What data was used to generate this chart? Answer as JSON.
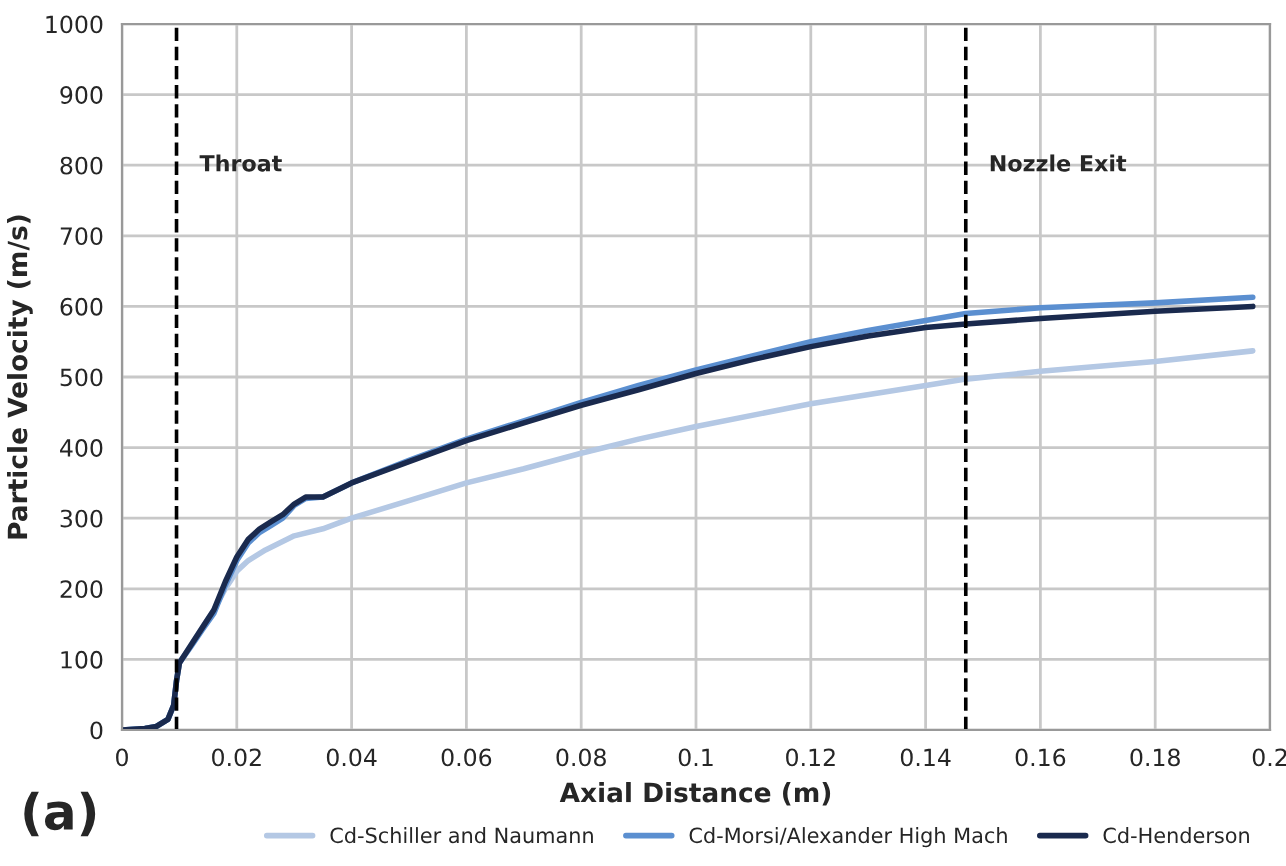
{
  "chart_data": {
    "type": "line",
    "xlabel": "Axial Distance (m)",
    "ylabel": "Particle Velocity (m/s)",
    "xlim": [
      0,
      0.2
    ],
    "xticks": [
      0,
      0.02,
      0.04,
      0.06,
      0.08,
      0.1,
      0.12,
      0.14,
      0.16,
      0.18,
      0.2
    ],
    "ylim": [
      0,
      1000
    ],
    "yticks": [
      0,
      100,
      200,
      300,
      400,
      500,
      600,
      700,
      800,
      900,
      1000
    ],
    "grid": true,
    "legend": "bottom",
    "marker": "none",
    "line_style": "solid",
    "ref_lines": [
      {
        "axis": "x",
        "value": 0.0095,
        "label": "Throat",
        "color": "#000000",
        "line_style": "dashed"
      },
      {
        "axis": "x",
        "value": 0.147,
        "label": "Nozzle Exit",
        "color": "#000000",
        "line_style": "dashed"
      }
    ],
    "annotations": [
      "(a)"
    ],
    "series": [
      {
        "name": "Cd-Schiller and Naumann",
        "color": "#b4c8e4",
        "x": [
          0,
          0.004,
          0.006,
          0.008,
          0.009,
          0.0095,
          0.01,
          0.012,
          0.014,
          0.016,
          0.018,
          0.02,
          0.022,
          0.025,
          0.03,
          0.035,
          0.04,
          0.05,
          0.06,
          0.07,
          0.08,
          0.09,
          0.1,
          0.12,
          0.14,
          0.147,
          0.16,
          0.18,
          0.197
        ],
        "values": [
          0,
          2,
          5,
          15,
          35,
          70,
          95,
          120,
          145,
          170,
          200,
          225,
          240,
          255,
          275,
          285,
          300,
          325,
          350,
          370,
          392,
          412,
          430,
          462,
          488,
          497,
          508,
          522,
          537
        ]
      },
      {
        "name": "Cd-Morsi/Alexander High Mach",
        "color": "#5b8fd0",
        "x": [
          0,
          0.004,
          0.006,
          0.008,
          0.009,
          0.0095,
          0.01,
          0.012,
          0.014,
          0.016,
          0.018,
          0.02,
          0.022,
          0.024,
          0.026,
          0.028,
          0.03,
          0.032,
          0.035,
          0.04,
          0.05,
          0.06,
          0.07,
          0.08,
          0.09,
          0.1,
          0.11,
          0.12,
          0.13,
          0.14,
          0.147,
          0.16,
          0.18,
          0.197
        ],
        "values": [
          0,
          2,
          5,
          15,
          35,
          70,
          95,
          118,
          142,
          165,
          205,
          240,
          265,
          280,
          290,
          300,
          318,
          328,
          330,
          350,
          382,
          412,
          438,
          464,
          488,
          510,
          530,
          550,
          566,
          580,
          590,
          598,
          605,
          613
        ]
      },
      {
        "name": "Cd-Henderson",
        "color": "#1a2a4e",
        "x": [
          0,
          0.004,
          0.006,
          0.008,
          0.009,
          0.0095,
          0.01,
          0.012,
          0.014,
          0.016,
          0.018,
          0.02,
          0.022,
          0.024,
          0.026,
          0.028,
          0.03,
          0.032,
          0.035,
          0.04,
          0.05,
          0.06,
          0.07,
          0.08,
          0.09,
          0.1,
          0.11,
          0.12,
          0.13,
          0.14,
          0.147,
          0.16,
          0.18,
          0.197
        ],
        "values": [
          0,
          2,
          5,
          15,
          35,
          70,
          95,
          120,
          145,
          170,
          210,
          245,
          270,
          285,
          295,
          305,
          320,
          330,
          330,
          350,
          380,
          410,
          435,
          460,
          482,
          505,
          525,
          543,
          558,
          570,
          575,
          583,
          593,
          600
        ]
      }
    ]
  }
}
